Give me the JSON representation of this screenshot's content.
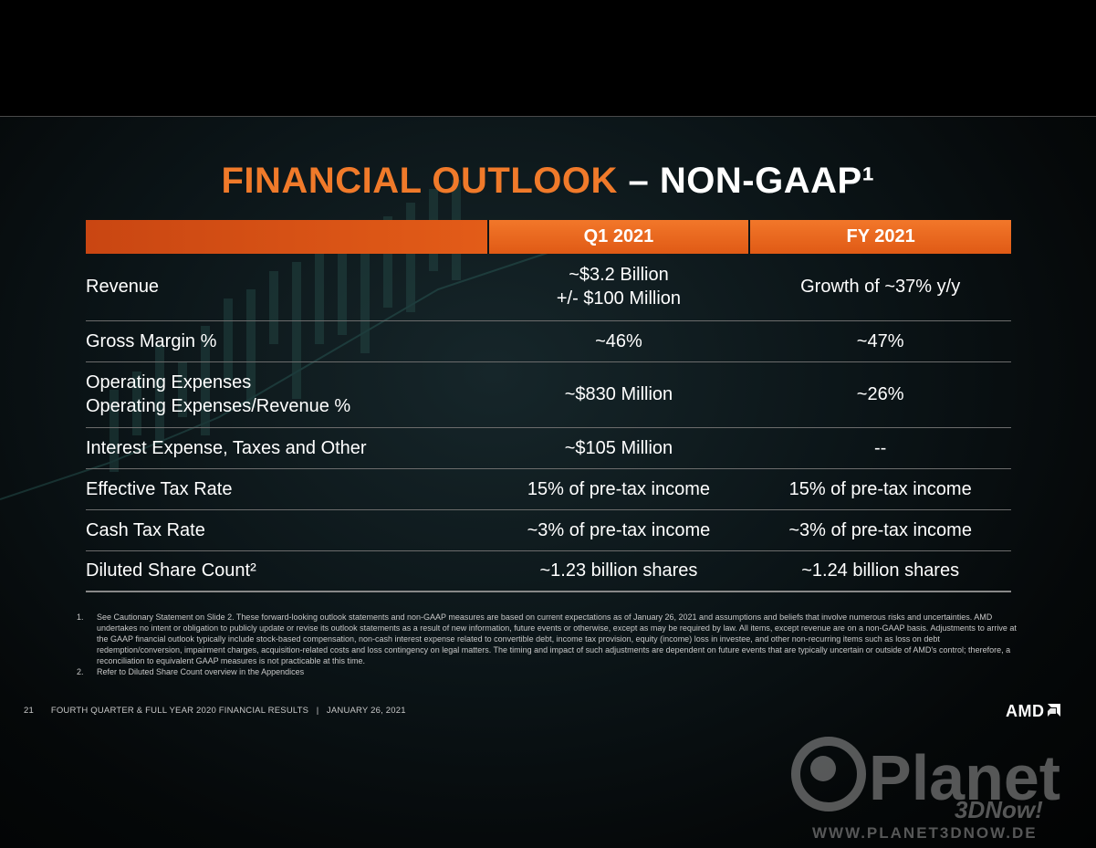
{
  "title": {
    "orange": "FINANCIAL OUTLOOK",
    "white": " – NON-GAAP¹"
  },
  "table": {
    "headers": [
      "",
      "Q1 2021",
      "FY 2021"
    ],
    "rows": [
      {
        "label": [
          "Revenue"
        ],
        "q1": [
          "~$3.2 Billion",
          "+/- $100 Million"
        ],
        "fy": [
          "Growth of ~37% y/y"
        ]
      },
      {
        "label": [
          "Gross Margin %"
        ],
        "q1": [
          "~46%"
        ],
        "fy": [
          "~47%"
        ]
      },
      {
        "label": [
          "Operating Expenses",
          "Operating Expenses/Revenue %"
        ],
        "q1": [
          "~$830 Million"
        ],
        "fy": [
          "~26%"
        ]
      },
      {
        "label": [
          "Interest Expense, Taxes and Other"
        ],
        "q1": [
          "~$105 Million"
        ],
        "fy": [
          "--"
        ]
      },
      {
        "label": [
          "Effective Tax Rate"
        ],
        "q1": [
          "15% of pre-tax income"
        ],
        "fy": [
          "15% of pre-tax income"
        ]
      },
      {
        "label": [
          "Cash Tax Rate"
        ],
        "q1": [
          "~3% of pre-tax income"
        ],
        "fy": [
          "~3% of pre-tax income"
        ]
      },
      {
        "label": [
          "Diluted Share Count²"
        ],
        "q1": [
          "~1.23 billion shares"
        ],
        "fy": [
          "~1.24 billion shares"
        ]
      }
    ]
  },
  "footnotes": [
    {
      "num": "1.",
      "text": "See Cautionary Statement on Slide 2. These forward-looking outlook statements and non-GAAP measures are based on current expectations as of January 26, 2021 and assumptions and beliefs that involve numerous risks and uncertainties. AMD undertakes no intent or obligation to publicly update or revise its outlook statements as a result of new information, future events or otherwise, except as may be required by law.  All items, except revenue are on a non-GAAP basis. Adjustments to arrive at the GAAP financial outlook typically include stock-based compensation, non-cash interest expense related to convertible debt, income tax provision, equity (income) loss in investee, and other non-recurring items such as loss on debt redemption/conversion, impairment charges, acquisition-related costs and loss contingency on legal matters. The timing and impact of such adjustments are dependent on future events that  are typically uncertain or outside of AMD's control; therefore, a reconciliation to equivalent GAAP measures is not practicable at this time."
    },
    {
      "num": "2.",
      "text": "Refer to Diluted Share Count overview in the Appendices"
    }
  ],
  "footer": {
    "page": "21",
    "text": "FOURTH QUARTER & FULL YEAR 2020 FINANCIAL RESULTS   |   JANUARY 26, 2021"
  },
  "logo": {
    "text": "AMD"
  },
  "watermark": {
    "name": "Planet",
    "sub": "3DNow!",
    "url": "WWW.PLANET3DNOW.DE"
  },
  "colors": {
    "accent": "#f07a2a",
    "header_bar": "#e8661f"
  }
}
